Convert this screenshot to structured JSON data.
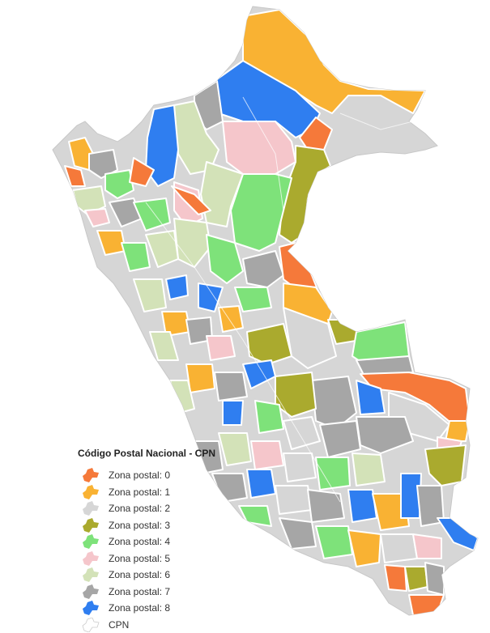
{
  "legend": {
    "title": "Código Postal Nacional - CPN",
    "items": [
      {
        "label": "Zona postal: 0",
        "color": "#f5793a"
      },
      {
        "label": "Zona postal: 1",
        "color": "#f9b233"
      },
      {
        "label": "Zona postal: 2",
        "color": "#d6d6d6"
      },
      {
        "label": "Zona postal: 3",
        "color": "#aaaa2e"
      },
      {
        "label": "Zona postal: 4",
        "color": "#7ee27a"
      },
      {
        "label": "Zona postal: 5",
        "color": "#f5c6cb"
      },
      {
        "label": "Zona postal: 6",
        "color": "#d3e2b8"
      },
      {
        "label": "Zona postal: 7",
        "color": "#a6a6a6"
      },
      {
        "label": "Zona postal: 8",
        "color": "#2f7ef0"
      },
      {
        "label": "CPN",
        "color": "#ffffff"
      }
    ]
  },
  "country_color": "#d6d6d6",
  "border_color": "#ffffff"
}
